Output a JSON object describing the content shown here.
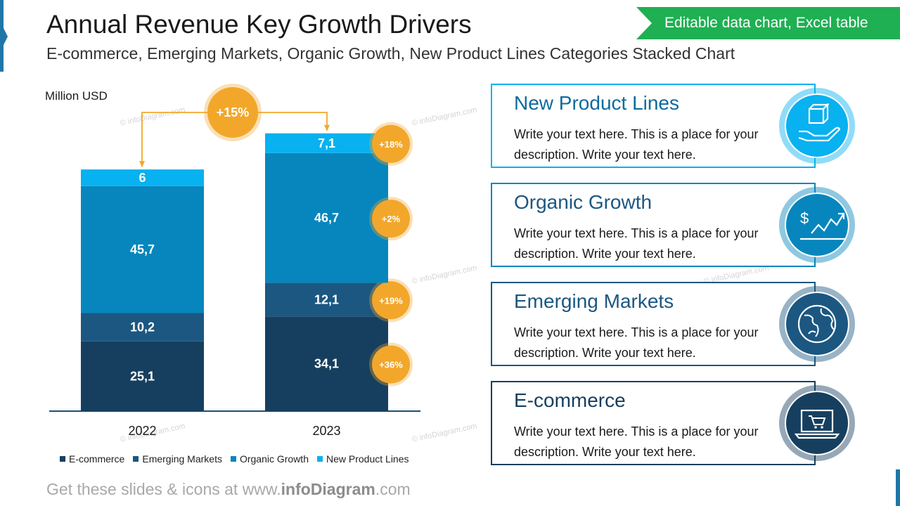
{
  "header": {
    "title": "Annual Revenue Key Growth Drivers",
    "subtitle": "E-commerce, Emerging Markets, Organic Growth, New Product Lines Categories Stacked Chart",
    "banner": "Editable data chart, Excel table"
  },
  "chart_data": {
    "type": "bar",
    "stacked": true,
    "unit_label": "Million USD",
    "categories": [
      "2022",
      "2023"
    ],
    "series": [
      {
        "name": "E-commerce",
        "values": [
          25.1,
          34.1
        ],
        "labels": [
          "25,1",
          "34,1"
        ],
        "color": "#163f5f",
        "growth": "+36%"
      },
      {
        "name": "Emerging Markets",
        "values": [
          10.2,
          12.1
        ],
        "labels": [
          "10,2",
          "12,1"
        ],
        "color": "#1b5781",
        "growth": "+19%"
      },
      {
        "name": "Organic Growth",
        "values": [
          45.7,
          46.7
        ],
        "labels": [
          "45,7",
          "46,7"
        ],
        "color": "#0686bd",
        "growth": "+2%"
      },
      {
        "name": "New Product Lines",
        "values": [
          6,
          7.1
        ],
        "labels": [
          "6",
          "7,1"
        ],
        "color": "#08b1ef",
        "growth": "+18%"
      }
    ],
    "total_growth": "+15%",
    "ylim": [
      0,
      110
    ],
    "legend_position": "bottom",
    "grid": false
  },
  "cards": [
    {
      "title": "New Product Lines",
      "text": "Write your text here. This is a place for your description. Write your text here.",
      "color": "#08b1ef",
      "title_color": "#0e6a9e",
      "icon": "hand-box-icon"
    },
    {
      "title": "Organic Growth",
      "text": "Write your text here. This is a place for your description. Write your text here.",
      "color": "#0686bd",
      "title_color": "#1b5781",
      "icon": "dollar-growth-chart-icon"
    },
    {
      "title": "Emerging Markets",
      "text": "Write your text here. This is a place for your description. Write your text here.",
      "color": "#1b5781",
      "title_color": "#1b5781",
      "icon": "globe-icon"
    },
    {
      "title": "E-commerce",
      "text": "Write your text here. This is a place for your description. Write your text here.",
      "color": "#163f5f",
      "title_color": "#163f5f",
      "icon": "laptop-cart-icon"
    }
  ],
  "accent_color": "#f2a72b",
  "footer": {
    "prefix": "Get these slides & icons at www.",
    "brand": "infoDiagram",
    "suffix": ".com"
  },
  "watermark": "© infoDiagram.com"
}
